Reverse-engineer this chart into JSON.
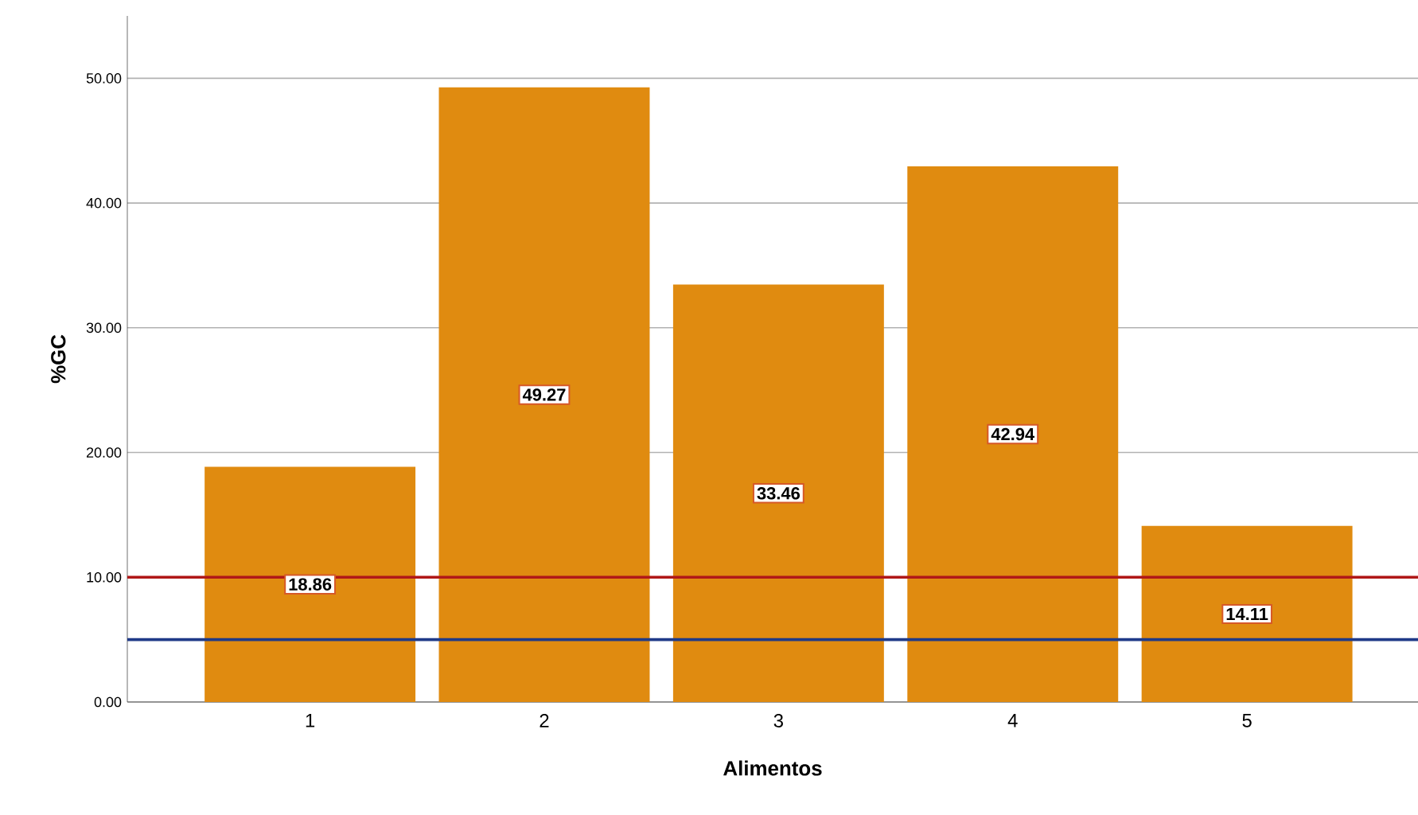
{
  "chart_data": {
    "type": "bar",
    "xlabel": "Alimentos",
    "ylabel": "%GC",
    "categories": [
      "1",
      "2",
      "3",
      "4",
      "5"
    ],
    "values": [
      18.86,
      49.27,
      33.46,
      42.94,
      14.11
    ],
    "color": "#e08b10",
    "data_labels": true,
    "ylim": [
      0,
      55
    ],
    "yticks": [
      {
        "value": 0,
        "label": "0.00"
      },
      {
        "value": 10,
        "label": "10.00"
      },
      {
        "value": 20,
        "label": "20.00"
      },
      {
        "value": 30,
        "label": "30.00"
      },
      {
        "value": 40,
        "label": "40.00"
      },
      {
        "value": 50,
        "label": "50.00"
      }
    ],
    "grid": "y",
    "ref_lines": [
      {
        "axis": "y",
        "value": 10,
        "color": "#b01818"
      },
      {
        "axis": "y",
        "value": 5,
        "color": "#1f3a88"
      }
    ]
  }
}
